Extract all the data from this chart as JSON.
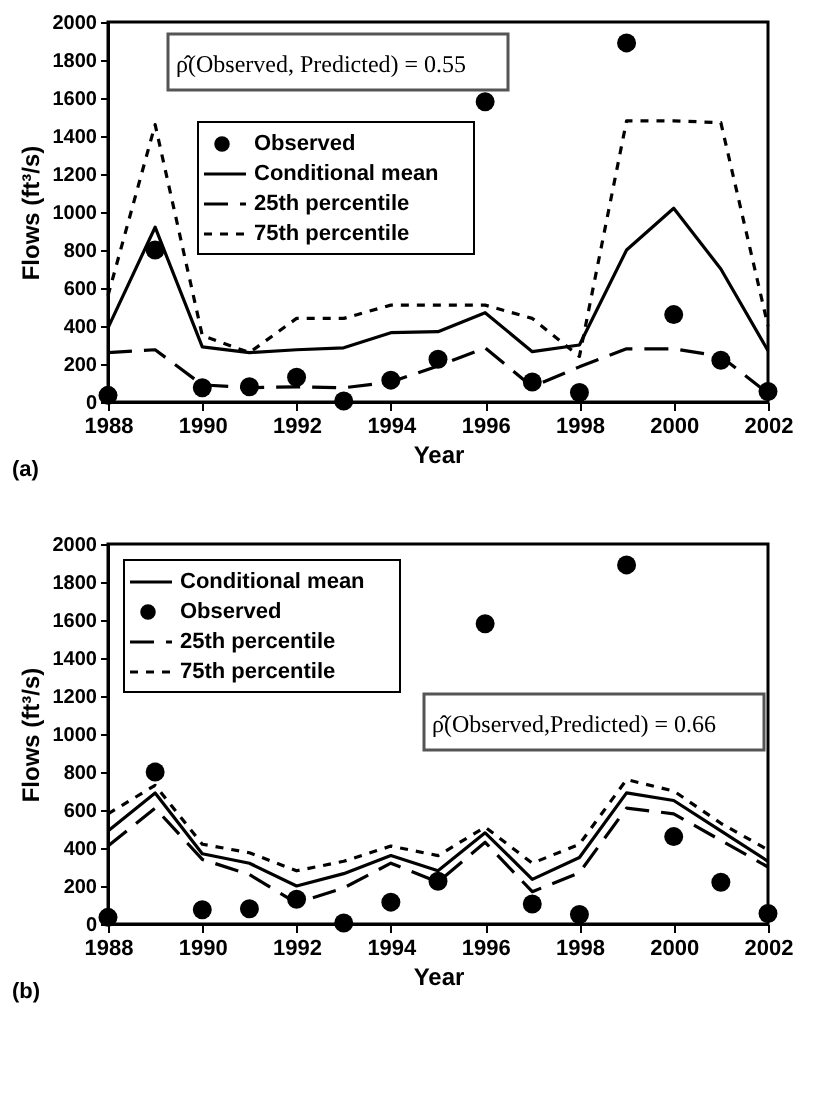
{
  "chart_data": [
    {
      "type": "line",
      "xlabel": "Year",
      "ylabel": "Flows (ft³/s)",
      "xlim": [
        1988,
        2002
      ],
      "xticks": [
        1988,
        1990,
        1992,
        1994,
        1996,
        1998,
        2000,
        2002
      ],
      "ylim": [
        0,
        2000
      ],
      "yticks": [
        0,
        200,
        400,
        600,
        800,
        1000,
        1200,
        1400,
        1600,
        1800,
        2000
      ],
      "grid": false,
      "legend": "left",
      "annotations": [
        "ρ̂(Observed, Predicted) = 0.55",
        "(a)"
      ],
      "x": [
        1988,
        1989,
        1990,
        1991,
        1992,
        1993,
        1994,
        1995,
        1996,
        1997,
        1998,
        1999,
        2000,
        2001,
        2002
      ],
      "series": [
        {
          "name": "Observed",
          "type": "scatter",
          "marker": "circle",
          "color": "#000000",
          "values": [
            35,
            800,
            75,
            80,
            130,
            5,
            115,
            225,
            1580,
            105,
            50,
            1890,
            460,
            220,
            55
          ]
        },
        {
          "name": "Conditional mean",
          "type": "line",
          "line_style": "solid",
          "color": "#000000",
          "values": [
            390,
            920,
            290,
            260,
            275,
            285,
            365,
            370,
            470,
            265,
            300,
            800,
            1020,
            700,
            270
          ]
        },
        {
          "name": "25th percentile",
          "type": "line",
          "line_style": "dashed",
          "color": "#000000",
          "values": [
            260,
            275,
            90,
            75,
            80,
            75,
            105,
            190,
            285,
            80,
            185,
            280,
            280,
            240,
            45
          ]
        },
        {
          "name": "75th percentile",
          "type": "line",
          "line_style": "dotted",
          "color": "#000000",
          "values": [
            560,
            1460,
            350,
            260,
            440,
            440,
            510,
            510,
            510,
            440,
            240,
            1480,
            1480,
            1470,
            400
          ]
        }
      ]
    },
    {
      "type": "line",
      "xlabel": "Year",
      "ylabel": "Flows (ft³/s)",
      "xlim": [
        1988,
        2002
      ],
      "xticks": [
        1988,
        1990,
        1992,
        1994,
        1996,
        1998,
        2000,
        2002
      ],
      "ylim": [
        0,
        2000
      ],
      "yticks": [
        0,
        200,
        400,
        600,
        800,
        1000,
        1200,
        1400,
        1600,
        1800,
        2000
      ],
      "grid": false,
      "legend": "top left",
      "annotations": [
        "ρ̂(Observed,Predicted) = 0.66",
        "(b)"
      ],
      "x": [
        1988,
        1989,
        1990,
        1991,
        1992,
        1993,
        1994,
        1995,
        1996,
        1997,
        1998,
        1999,
        2000,
        2001,
        2002
      ],
      "series": [
        {
          "name": "Conditional mean",
          "type": "line",
          "line_style": "solid",
          "color": "#000000",
          "values": [
            490,
            690,
            370,
            320,
            200,
            265,
            360,
            280,
            480,
            235,
            350,
            690,
            650,
            490,
            330
          ]
        },
        {
          "name": "Observed",
          "type": "scatter",
          "marker": "circle",
          "color": "#000000",
          "values": [
            35,
            800,
            75,
            80,
            130,
            5,
            115,
            225,
            1580,
            105,
            50,
            1890,
            460,
            220,
            55
          ]
        },
        {
          "name": "25th percentile",
          "type": "line",
          "line_style": "dashed",
          "color": "#000000",
          "values": [
            410,
            610,
            340,
            260,
            110,
            190,
            320,
            220,
            430,
            170,
            270,
            610,
            580,
            440,
            300
          ]
        },
        {
          "name": "75th percentile",
          "type": "line",
          "line_style": "dotted",
          "color": "#000000",
          "values": [
            580,
            730,
            420,
            375,
            280,
            330,
            410,
            360,
            510,
            320,
            420,
            760,
            700,
            530,
            390
          ]
        }
      ]
    }
  ]
}
